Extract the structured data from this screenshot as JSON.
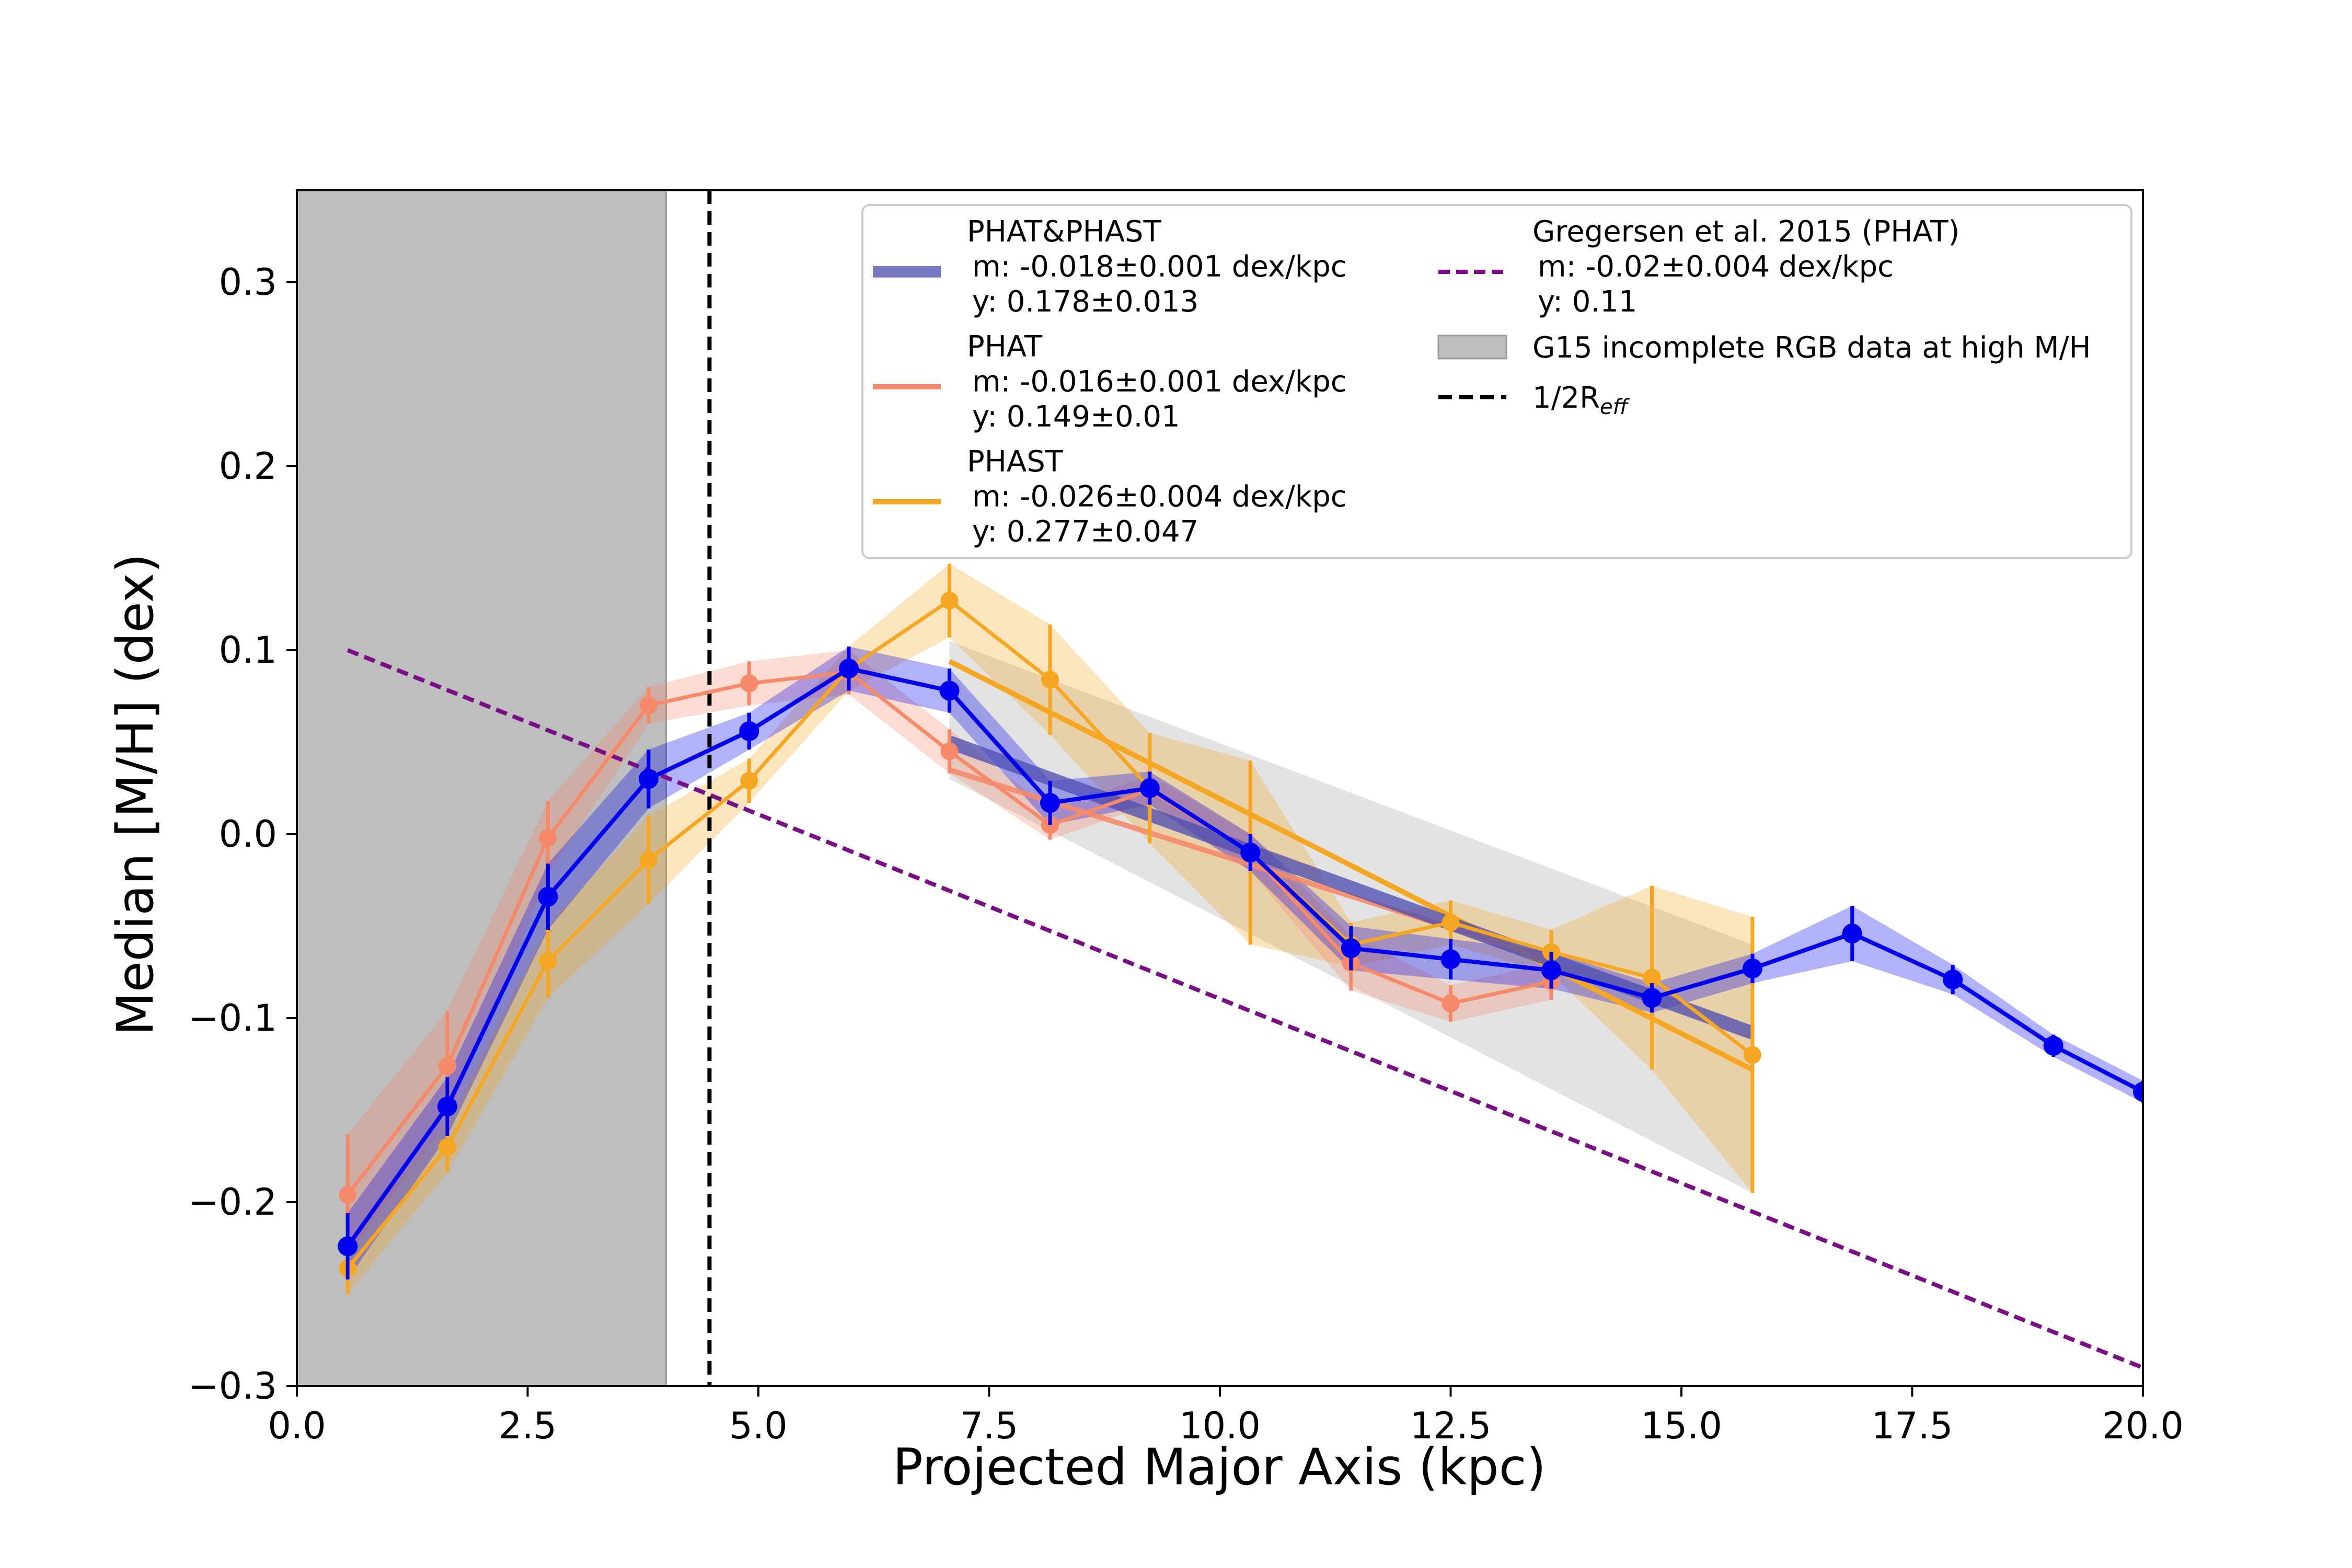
{
  "chart_data": {
    "type": "line",
    "xlabel": "Projected Major Axis (kpc)",
    "ylabel": "Median [M/H] (dex)",
    "xlim": [
      0,
      20
    ],
    "ylim": [
      -0.3,
      0.35
    ],
    "xticks": [
      0,
      2.5,
      5,
      7.5,
      10,
      12.5,
      15,
      17.5,
      20
    ],
    "xtick_labels": [
      "0.0",
      "2.5",
      "5.0",
      "7.5",
      "10.0",
      "12.5",
      "15.0",
      "17.5",
      "20.0"
    ],
    "yticks": [
      -0.3,
      -0.2,
      -0.1,
      0.0,
      0.1,
      0.2,
      0.3
    ],
    "ytick_labels": [
      "−0.3",
      "−0.2",
      "−0.1",
      "0.0",
      "0.1",
      "0.2",
      "0.3"
    ],
    "grid": false,
    "legend_position": "top-right",
    "colors": {
      "combined": "#0000ee",
      "combined_fit": "#4b4bb0",
      "phat": "#f5896a",
      "phast": "#f5a623",
      "g15": "#7a0e86",
      "shade": "#bebebe",
      "reff": "#000000"
    },
    "series": [
      {
        "name": "PHAT&PHAST",
        "x": [
          0.55,
          1.63,
          2.72,
          3.81,
          4.9,
          5.98,
          7.07,
          8.16,
          9.24,
          10.33,
          11.42,
          12.5,
          13.59,
          14.68,
          15.77,
          16.85,
          17.94,
          19.03,
          20.0
        ],
        "y": [
          -0.224,
          -0.148,
          -0.034,
          0.03,
          0.056,
          0.09,
          0.078,
          0.017,
          0.025,
          -0.01,
          -0.062,
          -0.068,
          -0.074,
          -0.089,
          -0.073,
          -0.054,
          -0.079,
          -0.115,
          -0.14
        ],
        "err": [
          0.018,
          0.016,
          0.018,
          0.016,
          0.01,
          0.012,
          0.012,
          0.012,
          0.009,
          0.01,
          0.012,
          0.011,
          0.01,
          0.008,
          0.008,
          0.015,
          0.008,
          0.006,
          0.006
        ]
      },
      {
        "name": "PHAT",
        "x": [
          0.55,
          1.63,
          2.72,
          3.81,
          4.9,
          5.98,
          7.07,
          8.16,
          9.24,
          10.33,
          11.42,
          12.5,
          13.59
        ],
        "y": [
          -0.196,
          -0.126,
          -0.002,
          0.07,
          0.082,
          0.088,
          0.045,
          0.005,
          0.024,
          -0.01,
          -0.07,
          -0.092,
          -0.08
        ],
        "err": [
          0.033,
          0.03,
          0.02,
          0.01,
          0.012,
          0.012,
          0.012,
          0.008,
          0.008,
          0.01,
          0.015,
          0.01,
          0.01
        ]
      },
      {
        "name": "PHAST",
        "x": [
          0.55,
          1.63,
          2.72,
          3.81,
          4.9,
          5.98,
          7.07,
          8.16,
          9.24,
          10.33,
          11.42,
          12.5,
          13.59,
          14.68,
          15.77
        ],
        "y": [
          -0.236,
          -0.17,
          -0.069,
          -0.014,
          0.029,
          0.09,
          0.127,
          0.084,
          0.025,
          -0.01,
          -0.06,
          -0.048,
          -0.064,
          -0.078,
          -0.12
        ],
        "err": [
          0.014,
          0.014,
          0.02,
          0.024,
          0.012,
          0.012,
          0.02,
          0.03,
          0.03,
          0.05,
          0.012,
          0.012,
          0.012,
          0.05,
          0.075
        ]
      }
    ],
    "fits": [
      {
        "name": "PHAT&PHAST",
        "label_m": "m: -0.018±0.001 dex/kpc",
        "label_y": "y: 0.178±0.013",
        "x": [
          7.07,
          15.77
        ],
        "y": [
          0.05,
          -0.108
        ],
        "y_lo": [
          0.037,
          -0.12
        ],
        "y_hi": [
          0.063,
          -0.096
        ]
      },
      {
        "name": "PHAT",
        "label_m": "m: -0.016±0.001 dex/kpc",
        "label_y": "y: 0.149±0.01",
        "x": [
          7.07,
          13.59
        ],
        "y": [
          0.035,
          -0.068
        ],
        "y_lo": [
          0.025,
          -0.078
        ],
        "y_hi": [
          0.045,
          -0.058
        ]
      },
      {
        "name": "PHAST",
        "label_m": "m: -0.026±0.004 dex/kpc",
        "label_y": "y: 0.277±0.047",
        "x": [
          7.07,
          15.77
        ],
        "y": [
          0.094,
          -0.128
        ],
        "y_lo": [
          0.03,
          -0.195
        ],
        "y_hi": [
          0.105,
          -0.06
        ]
      }
    ],
    "reference_line": {
      "name": "Gregersen et al. 2015 (PHAT)",
      "label_m": "m: -0.02±0.004 dex/kpc",
      "label_y": "y: 0.11",
      "x": [
        0.55,
        20.0
      ],
      "y": [
        0.1,
        -0.29
      ]
    },
    "shaded_region": {
      "name": "G15 incomplete RGB data at high M/H",
      "x": [
        0,
        4.0
      ]
    },
    "vline": {
      "name": "1/2R_eff",
      "x": 4.47
    },
    "legend": {
      "entries": [
        {
          "key": "combined",
          "title": "PHAT&PHAST",
          "m": "m: -0.018±0.001 dex/kpc",
          "y": "y: 0.178±0.013"
        },
        {
          "key": "phat",
          "title": "PHAT",
          "m": "m: -0.016±0.001 dex/kpc",
          "y": "y: 0.149±0.01"
        },
        {
          "key": "phast",
          "title": "PHAST",
          "m": "m: -0.026±0.004 dex/kpc",
          "y": "y: 0.277±0.047"
        },
        {
          "key": "g15",
          "title": "Gregersen et al. 2015 (PHAT)",
          "m": "m: -0.02±0.004 dex/kpc",
          "y": "y: 0.11"
        },
        {
          "key": "shade",
          "title": "G15 incomplete RGB data at high M/H"
        },
        {
          "key": "reff",
          "title": "1/2R",
          "sub": "eff"
        }
      ]
    }
  }
}
